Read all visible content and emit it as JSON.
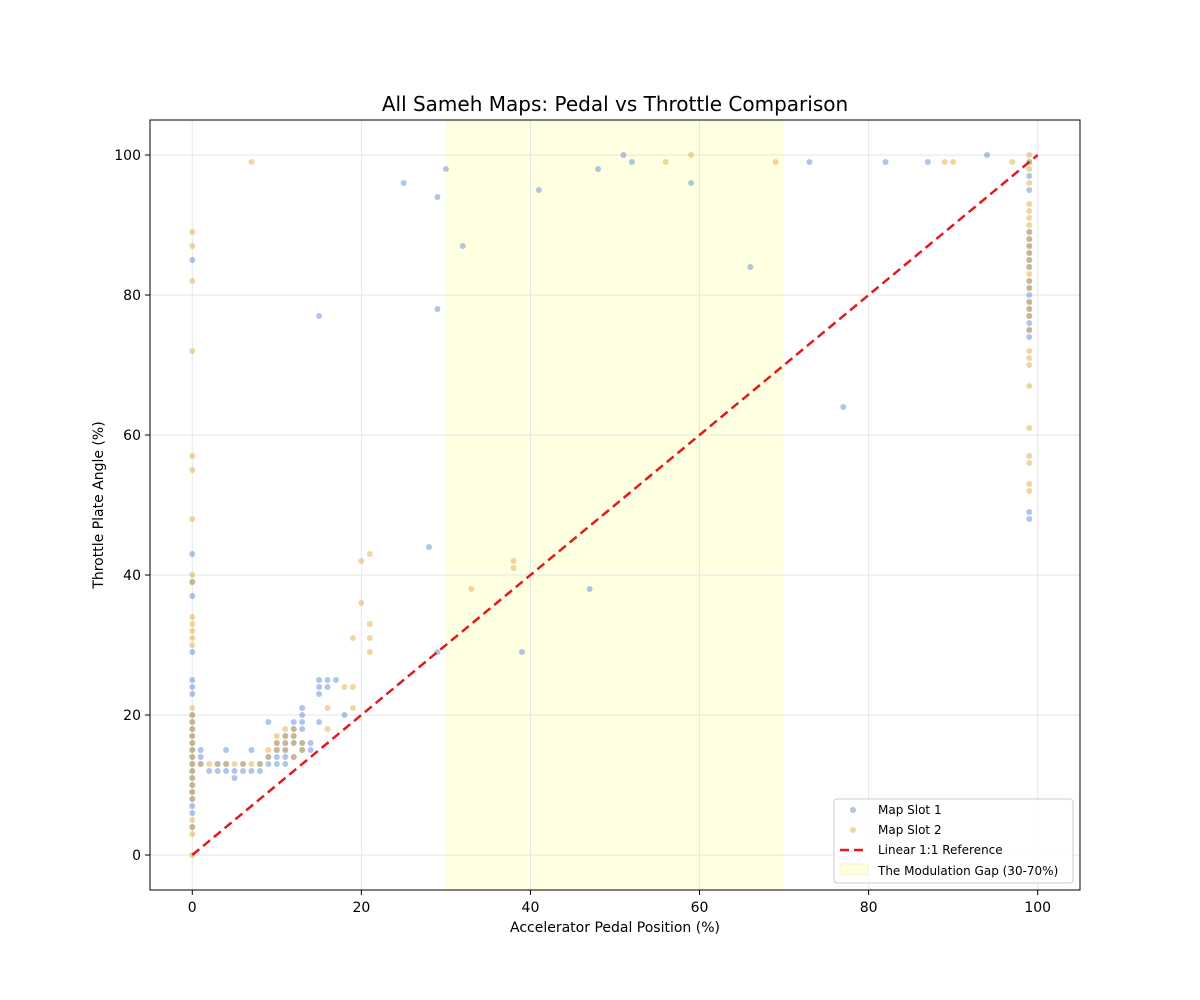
{
  "chart_data": {
    "type": "scatter",
    "title": "All Sameh Maps: Pedal vs Throttle Comparison",
    "xlabel": "Accelerator Pedal Position (%)",
    "ylabel": "Throttle Plate Angle (%)",
    "xlim": [
      -5,
      105
    ],
    "ylim": [
      -5,
      105
    ],
    "xticks": [
      0,
      20,
      40,
      60,
      80,
      100
    ],
    "yticks": [
      0,
      20,
      40,
      60,
      80,
      100
    ],
    "grid": true,
    "legend_position": "lower-right",
    "shaded_region": {
      "label": "The Modulation Gap (30-70%)",
      "x_range": [
        30,
        70
      ],
      "color": "#ffffdd"
    },
    "reference_line": {
      "label": "Linear 1:1 Reference",
      "x": [
        0,
        100
      ],
      "y": [
        0,
        100
      ],
      "color": "#e31a1c",
      "style": "dashed"
    },
    "series": [
      {
        "name": "Map Slot 1",
        "color": "#4f7fd4",
        "points": [
          [
            0,
            85
          ],
          [
            0,
            43
          ],
          [
            0,
            39
          ],
          [
            0,
            37
          ],
          [
            0,
            29
          ],
          [
            0,
            25
          ],
          [
            0,
            24
          ],
          [
            0,
            23
          ],
          [
            0,
            20
          ],
          [
            0,
            19
          ],
          [
            0,
            18
          ],
          [
            0,
            17
          ],
          [
            0,
            16
          ],
          [
            0,
            15
          ],
          [
            0,
            14
          ],
          [
            0,
            13
          ],
          [
            0,
            12
          ],
          [
            0,
            11
          ],
          [
            0,
            10
          ],
          [
            0,
            9
          ],
          [
            0,
            8
          ],
          [
            0,
            7
          ],
          [
            0,
            6
          ],
          [
            0,
            4
          ],
          [
            1,
            15
          ],
          [
            1,
            14
          ],
          [
            1,
            13
          ],
          [
            2,
            12
          ],
          [
            3,
            13
          ],
          [
            3,
            12
          ],
          [
            4,
            15
          ],
          [
            4,
            13
          ],
          [
            4,
            12
          ],
          [
            5,
            12
          ],
          [
            5,
            11
          ],
          [
            6,
            13
          ],
          [
            6,
            12
          ],
          [
            7,
            15
          ],
          [
            7,
            12
          ],
          [
            8,
            13
          ],
          [
            8,
            12
          ],
          [
            9,
            19
          ],
          [
            9,
            14
          ],
          [
            9,
            13
          ],
          [
            10,
            16
          ],
          [
            10,
            15
          ],
          [
            10,
            14
          ],
          [
            10,
            13
          ],
          [
            11,
            17
          ],
          [
            11,
            16
          ],
          [
            11,
            15
          ],
          [
            11,
            14
          ],
          [
            11,
            13
          ],
          [
            12,
            19
          ],
          [
            12,
            18
          ],
          [
            12,
            17
          ],
          [
            12,
            16
          ],
          [
            12,
            14
          ],
          [
            13,
            21
          ],
          [
            13,
            20
          ],
          [
            13,
            19
          ],
          [
            13,
            18
          ],
          [
            13,
            16
          ],
          [
            13,
            15
          ],
          [
            14,
            16
          ],
          [
            14,
            15
          ],
          [
            15,
            77
          ],
          [
            15,
            25
          ],
          [
            15,
            24
          ],
          [
            15,
            23
          ],
          [
            15,
            19
          ],
          [
            16,
            25
          ],
          [
            16,
            24
          ],
          [
            17,
            25
          ],
          [
            18,
            20
          ],
          [
            25,
            96
          ],
          [
            28,
            44
          ],
          [
            29,
            94
          ],
          [
            29,
            78
          ],
          [
            29,
            29
          ],
          [
            30,
            98
          ],
          [
            32,
            87
          ],
          [
            39,
            29
          ],
          [
            41,
            95
          ],
          [
            47,
            38
          ],
          [
            48,
            98
          ],
          [
            51,
            100
          ],
          [
            52,
            99
          ],
          [
            59,
            96
          ],
          [
            66,
            84
          ],
          [
            73,
            99
          ],
          [
            77,
            64
          ],
          [
            82,
            99
          ],
          [
            87,
            99
          ],
          [
            94,
            100
          ],
          [
            99,
            99
          ],
          [
            99,
            97
          ],
          [
            99,
            95
          ],
          [
            99,
            89
          ],
          [
            99,
            88
          ],
          [
            99,
            87
          ],
          [
            99,
            86
          ],
          [
            99,
            85
          ],
          [
            99,
            84
          ],
          [
            99,
            82
          ],
          [
            99,
            81
          ],
          [
            99,
            80
          ],
          [
            99,
            79
          ],
          [
            99,
            78
          ],
          [
            99,
            77
          ],
          [
            99,
            76
          ],
          [
            99,
            75
          ],
          [
            99,
            74
          ],
          [
            99,
            49
          ],
          [
            99,
            48
          ]
        ]
      },
      {
        "name": "Map Slot 2",
        "color": "#e0a431",
        "points": [
          [
            0,
            89
          ],
          [
            0,
            87
          ],
          [
            0,
            82
          ],
          [
            0,
            72
          ],
          [
            0,
            57
          ],
          [
            0,
            55
          ],
          [
            0,
            48
          ],
          [
            0,
            40
          ],
          [
            0,
            39
          ],
          [
            0,
            34
          ],
          [
            0,
            33
          ],
          [
            0,
            32
          ],
          [
            0,
            31
          ],
          [
            0,
            30
          ],
          [
            0,
            21
          ],
          [
            0,
            20
          ],
          [
            0,
            19
          ],
          [
            0,
            18
          ],
          [
            0,
            17
          ],
          [
            0,
            16
          ],
          [
            0,
            15
          ],
          [
            0,
            14
          ],
          [
            0,
            13
          ],
          [
            0,
            12
          ],
          [
            0,
            11
          ],
          [
            0,
            10
          ],
          [
            0,
            9
          ],
          [
            0,
            8
          ],
          [
            0,
            5
          ],
          [
            0,
            4
          ],
          [
            0,
            3
          ],
          [
            0,
            0
          ],
          [
            1,
            13
          ],
          [
            2,
            13
          ],
          [
            3,
            13
          ],
          [
            4,
            13
          ],
          [
            5,
            13
          ],
          [
            6,
            13
          ],
          [
            7,
            99
          ],
          [
            7,
            13
          ],
          [
            8,
            13
          ],
          [
            9,
            15
          ],
          [
            9,
            14
          ],
          [
            10,
            17
          ],
          [
            10,
            16
          ],
          [
            10,
            15
          ],
          [
            11,
            18
          ],
          [
            11,
            17
          ],
          [
            11,
            16
          ],
          [
            11,
            15
          ],
          [
            12,
            18
          ],
          [
            12,
            17
          ],
          [
            12,
            16
          ],
          [
            12,
            14
          ],
          [
            13,
            16
          ],
          [
            13,
            15
          ],
          [
            16,
            21
          ],
          [
            16,
            18
          ],
          [
            18,
            24
          ],
          [
            19,
            31
          ],
          [
            19,
            24
          ],
          [
            19,
            21
          ],
          [
            20,
            42
          ],
          [
            20,
            36
          ],
          [
            21,
            43
          ],
          [
            21,
            33
          ],
          [
            21,
            31
          ],
          [
            21,
            29
          ],
          [
            33,
            38
          ],
          [
            38,
            42
          ],
          [
            38,
            41
          ],
          [
            56,
            99
          ],
          [
            59,
            100
          ],
          [
            69,
            99
          ],
          [
            89,
            99
          ],
          [
            90,
            99
          ],
          [
            97,
            99
          ],
          [
            99,
            100
          ],
          [
            99,
            99
          ],
          [
            99,
            98
          ],
          [
            99,
            96
          ],
          [
            99,
            93
          ],
          [
            99,
            92
          ],
          [
            99,
            91
          ],
          [
            99,
            90
          ],
          [
            99,
            89
          ],
          [
            99,
            88
          ],
          [
            99,
            87
          ],
          [
            99,
            86
          ],
          [
            99,
            85
          ],
          [
            99,
            84
          ],
          [
            99,
            83
          ],
          [
            99,
            82
          ],
          [
            99,
            81
          ],
          [
            99,
            79
          ],
          [
            99,
            78
          ],
          [
            99,
            77
          ],
          [
            99,
            75
          ],
          [
            99,
            72
          ],
          [
            99,
            71
          ],
          [
            99,
            70
          ],
          [
            99,
            67
          ],
          [
            99,
            61
          ],
          [
            99,
            57
          ],
          [
            99,
            56
          ],
          [
            99,
            53
          ],
          [
            99,
            52
          ]
        ]
      }
    ]
  }
}
